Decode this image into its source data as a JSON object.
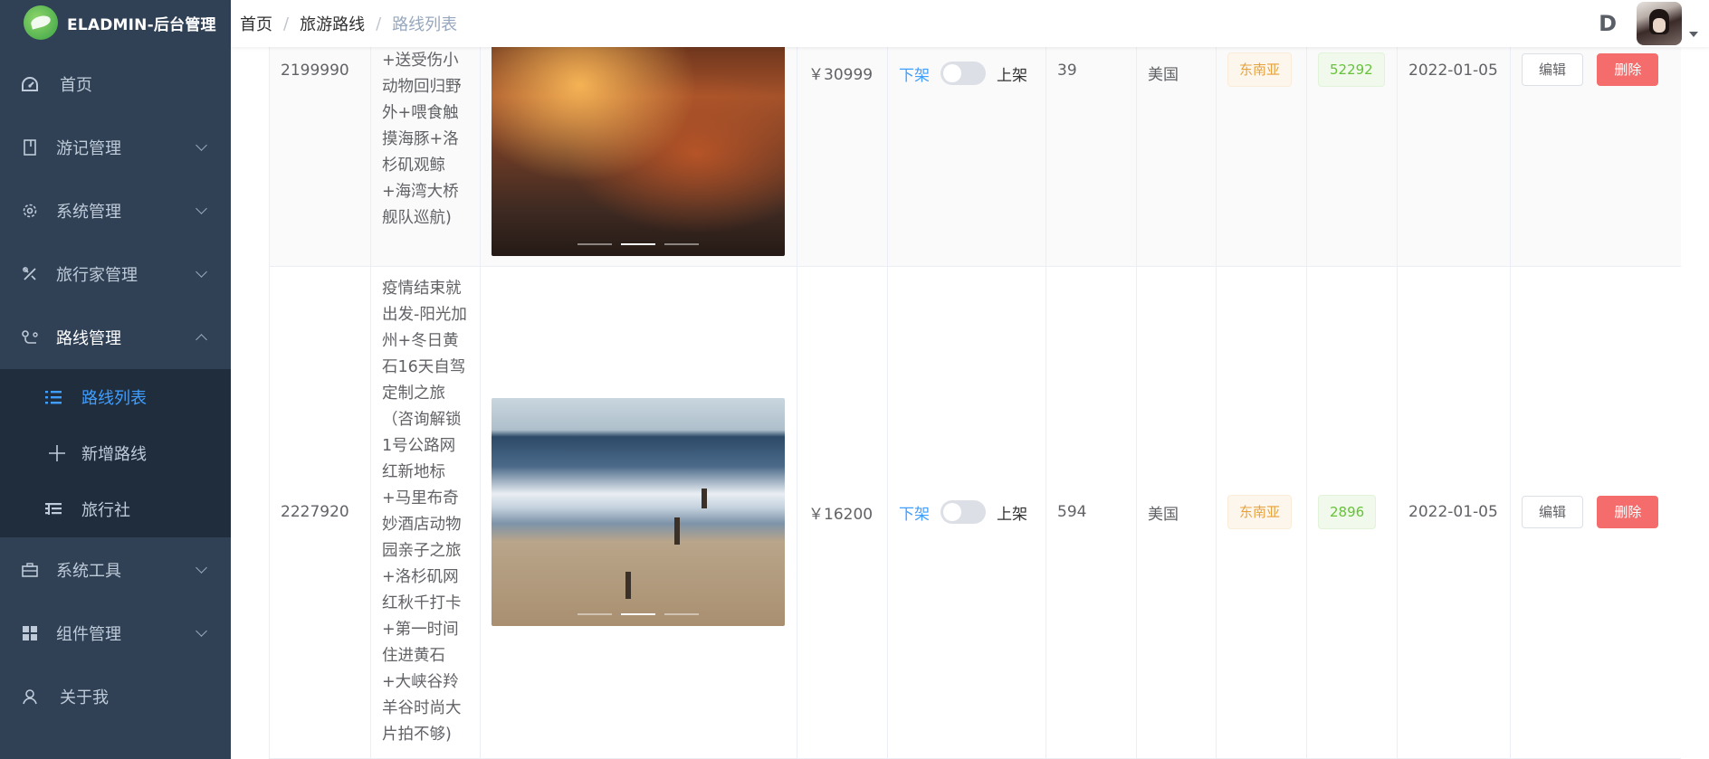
{
  "app": {
    "title": "ELADMIN-后台管理"
  },
  "sidebar": {
    "items": [
      {
        "label": "首页",
        "icon": "dashboard-icon"
      },
      {
        "label": "游记管理",
        "icon": "notebook-icon"
      },
      {
        "label": "系统管理",
        "icon": "gear-icon"
      },
      {
        "label": "旅行家管理",
        "icon": "tools-icon"
      },
      {
        "label": "路线管理",
        "icon": "route-icon"
      },
      {
        "label": "系统工具",
        "icon": "toolbox-icon"
      },
      {
        "label": "组件管理",
        "icon": "grid-icon"
      },
      {
        "label": "关于我",
        "icon": "user-icon"
      }
    ],
    "submenu": [
      {
        "label": "路线列表",
        "icon": "list-icon",
        "active": true
      },
      {
        "label": "新增路线",
        "icon": "plus-icon"
      },
      {
        "label": "旅行社",
        "icon": "agency-list-icon"
      }
    ]
  },
  "breadcrumb": [
    "首页",
    "旅游路线",
    "路线列表"
  ],
  "colors": {
    "sidebar_bg": "#304156",
    "submenu_bg": "#1f2d3d",
    "accent": "#409eff",
    "danger": "#f56c6c"
  },
  "table": {
    "rows": [
      {
        "id": "2199990",
        "name": "魔鬼岛互动\n+送受伤小\n动物回归野\n外+喂食触\n摸海豚+洛\n杉矶观鲸\n+海湾大桥\n舰队巡航)",
        "price": "￥30999",
        "off_label": "下架",
        "on_label": "上架",
        "stock": "39",
        "country": "美国",
        "region": "东南亚",
        "views": "52292",
        "date": "2022-01-05",
        "edit": "编辑",
        "delete": "删除"
      },
      {
        "id": "2227920",
        "name": "疫情结束就\n出发-阳光加\n州+冬日黄\n石16天自驾\n定制之旅\n（咨询解锁\n1号公路网\n红新地标\n+马里布奇\n妙酒店动物\n园亲子之旅\n+洛杉矶网\n红秋千打卡\n+第一时间\n住进黄石\n+大峡谷羚\n羊谷时尚大\n片拍不够)",
        "price": "￥16200",
        "off_label": "下架",
        "on_label": "上架",
        "stock": "594",
        "country": "美国",
        "region": "东南亚",
        "views": "2896",
        "date": "2022-01-05",
        "edit": "编辑",
        "delete": "删除"
      }
    ]
  }
}
